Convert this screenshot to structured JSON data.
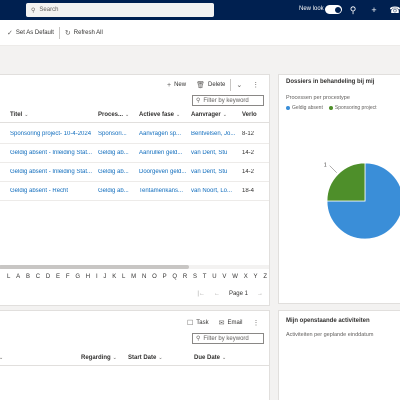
{
  "topbar": {
    "search_placeholder": "Search",
    "new_look_label": "New look",
    "new_look_on": true,
    "icons": [
      "lightbulb-icon",
      "add-icon",
      "notification-bell-icon"
    ]
  },
  "commandbar": {
    "set_default_label": "Set As Default",
    "refresh_label": "Refresh All"
  },
  "grid": {
    "new_label": "New",
    "delete_label": "Delete",
    "filter_placeholder": "Filter by keyword",
    "columns": [
      "Titel",
      "Proces...",
      "Actieve fase",
      "Aanvrager",
      "Verlo"
    ],
    "rows": [
      [
        "Sponsoring project- 10-4-2024",
        "Sponsori...",
        "Aanvragen sp...",
        "Bentvelsen, Jo...",
        "8-12"
      ],
      [
        "Geldig absent - Inleiding Stat...",
        "Geldig ab...",
        "Aanrullen geld...",
        "van Dent, Stu",
        "14-2"
      ],
      [
        "Geldig absent - Inleiding Stat...",
        "Geldig ab...",
        "Doorgeven geld...",
        "van Dent, Stu",
        "14-2"
      ],
      [
        "Geldig absent - Recht",
        "Geldig ab...",
        "Tentamenkans...",
        "van Noort, Lo...",
        "18-4"
      ]
    ],
    "alphabet": [
      "L",
      "A",
      "B",
      "C",
      "D",
      "E",
      "F",
      "G",
      "H",
      "I",
      "J",
      "K",
      "L",
      "M",
      "N",
      "O",
      "P",
      "Q",
      "R",
      "S",
      "T",
      "U",
      "V",
      "W",
      "X",
      "Y",
      "Z"
    ],
    "page_label": "Page 1"
  },
  "chart": {
    "title": "Dossiers in behandeling bij mij",
    "subtitle": "Processen per procestype",
    "colors": {
      "geldig_absent": "#3a8ed8",
      "sponsoring": "#4e8f2a"
    }
  },
  "chart_data": {
    "type": "pie",
    "categories": [
      "Geldig absent",
      "Sponsoring project"
    ],
    "values": [
      3,
      1
    ],
    "data_labels": [
      "",
      "1"
    ]
  },
  "activities": {
    "task_label": "Task",
    "email_label": "Email",
    "filter_placeholder": "Filter by keyword",
    "columns": [
      "Regarding",
      "Start Date",
      "Due Date"
    ]
  },
  "open_activities": {
    "title": "Mijn openstaande activiteiten",
    "subtitle": "Activiteiten per geplande einddatum"
  }
}
